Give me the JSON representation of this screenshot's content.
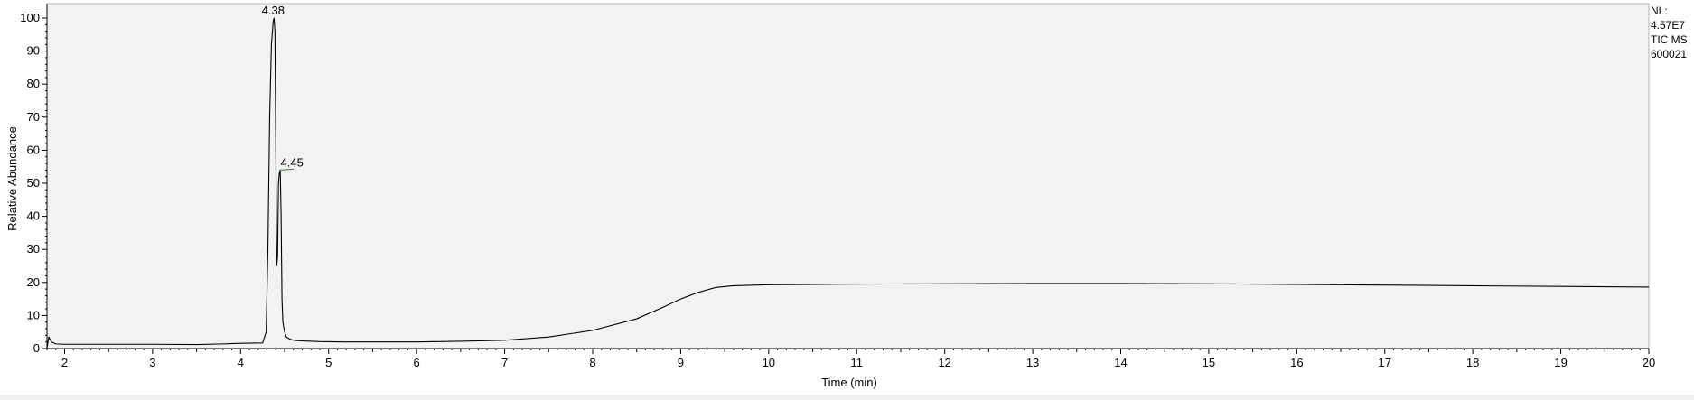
{
  "chart_data": {
    "type": "line",
    "title": "",
    "xlabel": "Time (min)",
    "ylabel": "Relative Abundance",
    "xlim": [
      1.8,
      20
    ],
    "ylim": [
      0,
      100
    ],
    "x_ticks": [
      "2",
      "3",
      "4",
      "5",
      "6",
      "7",
      "8",
      "9",
      "10",
      "11",
      "12",
      "13",
      "14",
      "15",
      "16",
      "17",
      "18",
      "19",
      "20"
    ],
    "y_ticks": [
      "0",
      "10",
      "20",
      "30",
      "40",
      "50",
      "60",
      "70",
      "80",
      "90",
      "100"
    ],
    "grid": false,
    "line_color": "#000000",
    "plot_background": "#f2f2f2",
    "peak_labels": [
      {
        "text": "4.38",
        "x": 4.38,
        "y": 100
      },
      {
        "text": "4.45",
        "x": 4.45,
        "y": 54
      }
    ],
    "series": [
      {
        "x": [
          1.8,
          1.82,
          1.85,
          1.9,
          2.0,
          2.5,
          3.0,
          3.5,
          3.8,
          4.0,
          4.25,
          4.29,
          4.31,
          4.33,
          4.35,
          4.37,
          4.38,
          4.39,
          4.4,
          4.41,
          4.42,
          4.43,
          4.44,
          4.45,
          4.46,
          4.47,
          4.48,
          4.5,
          4.52,
          4.55,
          4.6,
          4.7,
          4.9,
          5.2,
          5.5,
          6.0,
          6.5,
          7.0,
          7.5,
          8.0,
          8.5,
          8.8,
          9.0,
          9.2,
          9.4,
          9.6,
          10.0,
          11,
          12,
          13,
          14,
          15,
          16,
          17,
          18,
          19,
          20
        ],
        "y": [
          0,
          3.5,
          2.0,
          1.4,
          1.3,
          1.3,
          1.3,
          1.2,
          1.4,
          1.6,
          1.7,
          5,
          30,
          70,
          92,
          99,
          100,
          96,
          60,
          25,
          28,
          50,
          53,
          54,
          40,
          15,
          8,
          5,
          3.5,
          3,
          2.5,
          2.3,
          2.1,
          2.0,
          2.0,
          2.0,
          2.2,
          2.5,
          3.5,
          5.5,
          9,
          12.5,
          15,
          17,
          18.5,
          19,
          19.3,
          19.5,
          19.6,
          19.7,
          19.7,
          19.6,
          19.4,
          19.2,
          19,
          18.8,
          18.6
        ]
      }
    ]
  },
  "normalization": {
    "nl_label": "NL:",
    "nl_value": "4.57E7",
    "trace_label": "TIC  MS",
    "file_id": "600021"
  }
}
